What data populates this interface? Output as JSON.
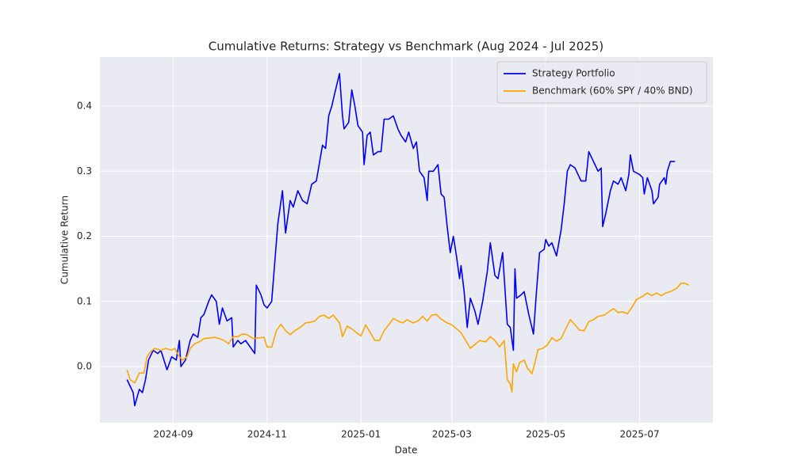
{
  "chart_data": {
    "type": "line",
    "title": "Cumulative Returns: Strategy vs Benchmark (Aug 2024 - Jul 2025)",
    "xlabel": "Date",
    "ylabel": "Cumulative Return",
    "xlim": [
      19919.4,
      20317.6
    ],
    "xticks": [
      {
        "value": 19967,
        "label": "2024-09"
      },
      {
        "value": 20028,
        "label": "2024-11"
      },
      {
        "value": 20089,
        "label": "2025-01"
      },
      {
        "value": 20148,
        "label": "2025-03"
      },
      {
        "value": 20209,
        "label": "2025-05"
      },
      {
        "value": 20270,
        "label": "2025-07"
      }
    ],
    "ylim": [
      -0.0863,
      0.4754
    ],
    "yticks": [
      {
        "value": 0,
        "label": "0.0"
      },
      0.1,
      0.2,
      0.3,
      0.4
    ],
    "grid": true,
    "legend": "upper right",
    "series": [
      {
        "name": "Strategy Portfolio",
        "color": "#0000ff",
        "x": [
          19937,
          19941,
          19942,
          19945,
          19947,
          19949,
          19951,
          19954,
          19957,
          19959,
          19963,
          19966,
          19969,
          19971,
          19972,
          19975,
          19978,
          19980,
          19983,
          19985,
          19987,
          19990,
          19992,
          19995,
          19997,
          19999,
          20002,
          20005,
          20006,
          20009,
          20011,
          20014,
          20017,
          20020,
          20021,
          20024,
          20026,
          20028,
          20031,
          20033,
          20035,
          20038,
          20040,
          20043,
          20045,
          20048,
          20051,
          20054,
          20057,
          20060,
          20064,
          20066,
          20068,
          20070,
          20072,
          20075,
          20077,
          20078,
          20081,
          20083,
          20085,
          20087,
          20090,
          20091,
          20093,
          20095,
          20097,
          20100,
          20102,
          20104,
          20107,
          20110,
          20113,
          20115,
          20118,
          20120,
          20123,
          20125,
          20127,
          20130,
          20132,
          20133,
          20136,
          20139,
          20141,
          20143,
          20145,
          20147,
          20149,
          20151,
          20153,
          20154,
          20156,
          20158,
          20160,
          20163,
          20165,
          20168,
          20171,
          20173,
          20176,
          20178,
          20181,
          20184,
          20186,
          20188,
          20189,
          20190,
          20193,
          20195,
          20198,
          20201,
          20203,
          20205,
          20208,
          20209,
          20211,
          20213,
          20216,
          20219,
          20221,
          20223,
          20225,
          20228,
          20230,
          20232,
          20235,
          20237,
          20239,
          20241,
          20243,
          20245,
          20246,
          20248,
          20251,
          20253,
          20256,
          20258,
          20261,
          20263,
          20264,
          20266,
          20270,
          20272,
          20273,
          20275,
          20278,
          20279,
          20282,
          20283,
          20286,
          20287,
          20288,
          20290,
          20293
        ],
        "values": [
          -0.02,
          -0.04,
          -0.06,
          -0.035,
          -0.04,
          -0.02,
          0.01,
          0.025,
          0.02,
          0.025,
          -0.005,
          0.015,
          0.01,
          0.04,
          0.0,
          0.01,
          0.04,
          0.05,
          0.045,
          0.075,
          0.08,
          0.1,
          0.11,
          0.1,
          0.065,
          0.09,
          0.07,
          0.075,
          0.03,
          0.04,
          0.035,
          0.04,
          0.03,
          0.02,
          0.125,
          0.11,
          0.095,
          0.09,
          0.1,
          0.16,
          0.22,
          0.27,
          0.205,
          0.255,
          0.245,
          0.27,
          0.255,
          0.25,
          0.28,
          0.285,
          0.34,
          0.335,
          0.385,
          0.4,
          0.42,
          0.45,
          0.385,
          0.365,
          0.375,
          0.425,
          0.4,
          0.37,
          0.36,
          0.31,
          0.355,
          0.36,
          0.325,
          0.33,
          0.33,
          0.38,
          0.38,
          0.385,
          0.365,
          0.355,
          0.345,
          0.36,
          0.335,
          0.345,
          0.3,
          0.29,
          0.255,
          0.3,
          0.3,
          0.31,
          0.265,
          0.26,
          0.215,
          0.175,
          0.2,
          0.17,
          0.135,
          0.155,
          0.115,
          0.06,
          0.105,
          0.085,
          0.065,
          0.1,
          0.145,
          0.19,
          0.14,
          0.135,
          0.175,
          0.065,
          0.06,
          0.025,
          0.15,
          0.105,
          0.11,
          0.115,
          0.08,
          0.05,
          0.115,
          0.175,
          0.18,
          0.195,
          0.185,
          0.19,
          0.17,
          0.21,
          0.25,
          0.3,
          0.31,
          0.305,
          0.295,
          0.285,
          0.285,
          0.33,
          0.32,
          0.31,
          0.3,
          0.305,
          0.215,
          0.235,
          0.27,
          0.285,
          0.28,
          0.29,
          0.27,
          0.295,
          0.325,
          0.3,
          0.295,
          0.29,
          0.265,
          0.29,
          0.27,
          0.25,
          0.26,
          0.28,
          0.29,
          0.28,
          0.3,
          0.315,
          0.315
        ]
      },
      {
        "name": "Benchmark (60% SPY / 40% BND)",
        "color": "#ffa500",
        "x": [
          19937,
          19939,
          19942,
          19945,
          19948,
          19950,
          19952,
          19955,
          19959,
          19962,
          19966,
          19968,
          19971,
          19973,
          19976,
          19978,
          19981,
          19984,
          19987,
          19991,
          19994,
          19997,
          20000,
          20003,
          20006,
          20009,
          20012,
          20015,
          20019,
          20022,
          20026,
          20028,
          20031,
          20034,
          20037,
          20040,
          20043,
          20046,
          20050,
          20053,
          20056,
          20059,
          20062,
          20065,
          20068,
          20071,
          20075,
          20077,
          20080,
          20083,
          20086,
          20089,
          20092,
          20095,
          20098,
          20101,
          20104,
          20107,
          20110,
          20113,
          20116,
          20119,
          20123,
          20126,
          20129,
          20132,
          20135,
          20138,
          20141,
          20145,
          20148,
          20151,
          20154,
          20157,
          20160,
          20163,
          20166,
          20170,
          20173,
          20176,
          20179,
          20182,
          20184,
          20186,
          20187,
          20188,
          20190,
          20192,
          20195,
          20197,
          20200,
          20202,
          20204,
          20207,
          20210,
          20213,
          20216,
          20219,
          20222,
          20225,
          20228,
          20231,
          20234,
          20237,
          20240,
          20243,
          20247,
          20250,
          20253,
          20256,
          20259,
          20262,
          20265,
          20268,
          20272,
          20275,
          20278,
          20281,
          20284,
          20287,
          20290,
          20294,
          20297,
          20299,
          20302
        ],
        "values": [
          -0.005,
          -0.02,
          -0.025,
          -0.01,
          -0.01,
          0.015,
          0.022,
          0.028,
          0.025,
          0.028,
          0.025,
          0.028,
          0.015,
          0.01,
          0.015,
          0.028,
          0.035,
          0.038,
          0.043,
          0.044,
          0.045,
          0.043,
          0.04,
          0.035,
          0.046,
          0.046,
          0.05,
          0.049,
          0.043,
          0.044,
          0.045,
          0.03,
          0.03,
          0.055,
          0.065,
          0.055,
          0.049,
          0.055,
          0.061,
          0.067,
          0.068,
          0.07,
          0.077,
          0.079,
          0.074,
          0.079,
          0.067,
          0.046,
          0.062,
          0.058,
          0.052,
          0.047,
          0.064,
          0.052,
          0.04,
          0.04,
          0.055,
          0.064,
          0.074,
          0.07,
          0.067,
          0.072,
          0.067,
          0.07,
          0.077,
          0.07,
          0.079,
          0.08,
          0.073,
          0.067,
          0.064,
          0.058,
          0.052,
          0.04,
          0.028,
          0.034,
          0.04,
          0.038,
          0.046,
          0.04,
          0.03,
          0.04,
          -0.02,
          -0.027,
          -0.039,
          0.004,
          -0.008,
          0.006,
          0.01,
          -0.002,
          -0.011,
          0.006,
          0.026,
          0.028,
          0.033,
          0.044,
          0.039,
          0.043,
          0.058,
          0.072,
          0.064,
          0.056,
          0.055,
          0.069,
          0.072,
          0.077,
          0.079,
          0.084,
          0.089,
          0.083,
          0.084,
          0.081,
          0.091,
          0.103,
          0.108,
          0.113,
          0.109,
          0.113,
          0.109,
          0.113,
          0.115,
          0.12,
          0.128,
          0.128,
          0.125
        ]
      }
    ]
  }
}
